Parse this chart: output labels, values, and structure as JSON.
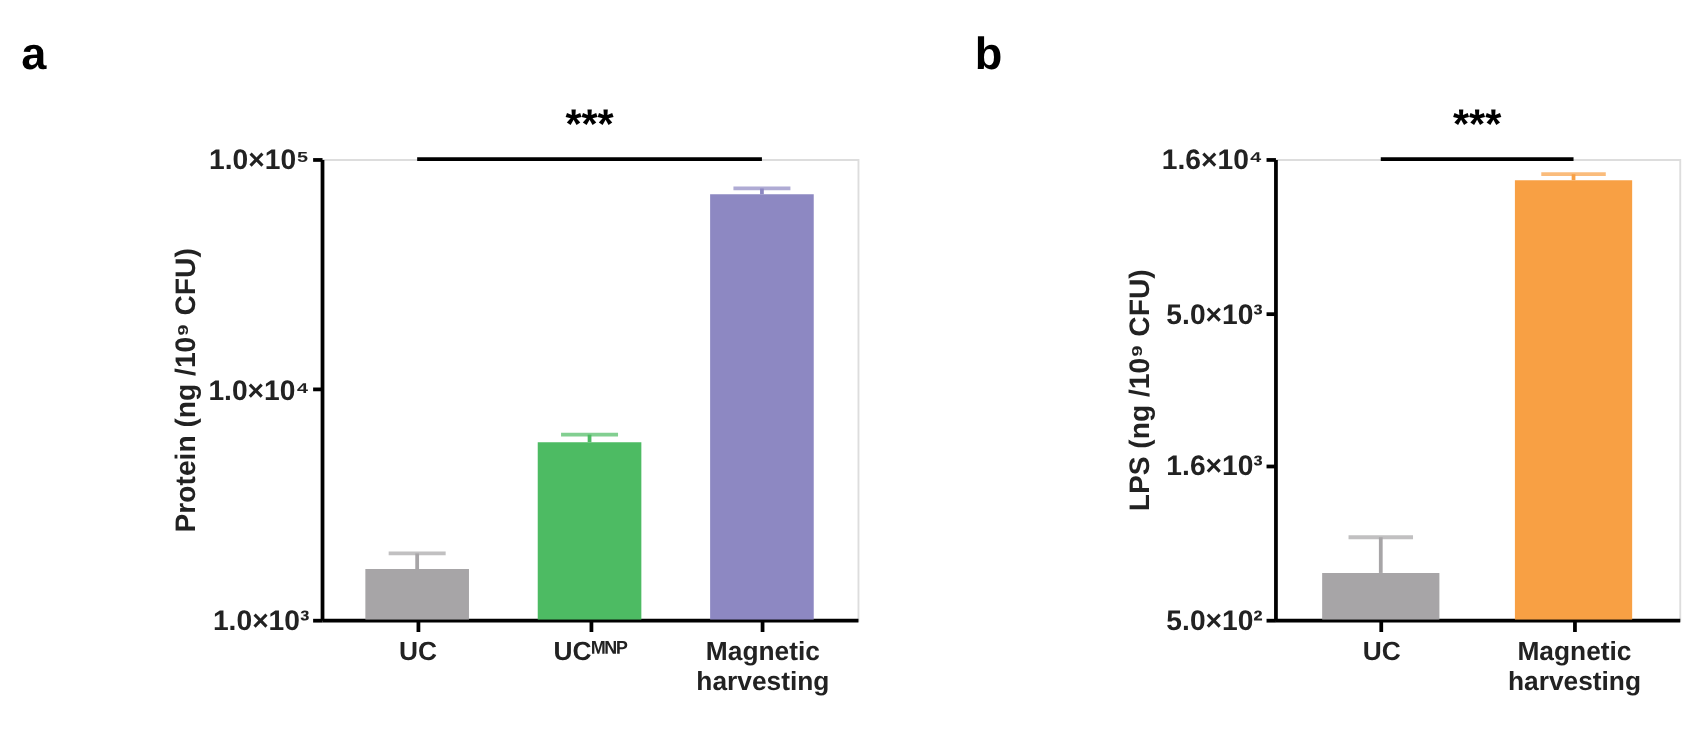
{
  "chart_data": [
    {
      "type": "bar",
      "title": "a",
      "ylabel": "Protein (ng /10⁹ CFU)",
      "categories": [
        "UC",
        "UCᴹᴺᴾ",
        "Magnetic harvesting"
      ],
      "values": [
        1660,
        5900,
        70300
      ],
      "colors": [
        "#a7a5a7",
        "#4dbb63",
        "#8d88c2"
      ],
      "errors": [
        [
          1660,
          1940
        ],
        [
          5900,
          6360
        ],
        [
          70300,
          74500
        ]
      ],
      "log": true,
      "ylim": [
        1000,
        100000
      ],
      "yticks": [
        {
          "value": 1000,
          "label": "1.0×10³"
        },
        {
          "value": 10000,
          "label": "1.0×10⁴"
        },
        {
          "value": 100000,
          "label": "1.0×10⁵"
        }
      ],
      "grid": false,
      "annotations": [
        "***"
      ]
    },
    {
      "type": "bar",
      "title": "b",
      "ylabel": "LPS (ng /10⁹ CFU)",
      "categories": [
        "UC",
        "Magnetic harvesting"
      ],
      "values": [
        711,
        13650
      ],
      "colors": [
        "#a7a5a7",
        "#f8a044"
      ],
      "errors": [
        [
          711,
          930
        ],
        [
          13650,
          14270
        ]
      ],
      "log": true,
      "ylim": [
        500,
        16000
      ],
      "yticks": [
        {
          "value": 500,
          "label": "5.0×10²"
        },
        {
          "value": 1600,
          "label": "1.6×10³"
        },
        {
          "value": 5000,
          "label": "5.0×10³"
        },
        {
          "value": 16000,
          "label": "1.6×10⁴"
        }
      ],
      "grid": false,
      "annotations": [
        "***"
      ]
    }
  ]
}
